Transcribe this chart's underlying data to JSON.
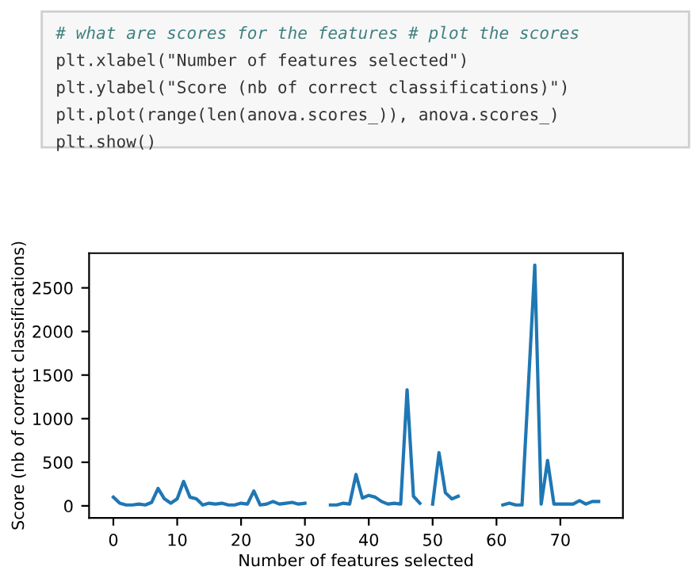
{
  "chart_data": {
    "type": "line",
    "xlabel": "Number of features selected",
    "ylabel": "Score (nb of correct classifications)",
    "annotations": [
      "# what are scores for the features # plot the scores",
      "plt.xlabel(\"Number of features selected\")",
      "plt.ylabel(\"Score (nb of correct classifications)\")",
      "plt.plot(range(len(anova.scores_)), anova.scores_)",
      "plt.show()"
    ],
    "x": [
      0,
      1,
      2,
      3,
      4,
      5,
      6,
      7,
      8,
      9,
      10,
      11,
      12,
      13,
      14,
      15,
      16,
      17,
      18,
      19,
      20,
      21,
      22,
      23,
      24,
      25,
      26,
      27,
      28,
      29,
      30,
      31,
      32,
      33,
      34,
      35,
      36,
      37,
      38,
      39,
      40,
      41,
      42,
      43,
      44,
      45,
      46,
      47,
      48,
      49,
      50,
      51,
      52,
      53,
      54,
      55,
      56,
      57,
      58,
      59,
      60,
      61,
      62,
      63,
      64,
      65,
      66,
      67,
      68,
      69,
      70,
      71,
      72,
      73,
      74,
      75,
      76
    ],
    "series": [
      {
        "color": "#1f77b4",
        "values": [
          100,
          30,
          10,
          10,
          20,
          10,
          40,
          200,
          80,
          30,
          80,
          280,
          100,
          80,
          10,
          30,
          20,
          30,
          10,
          10,
          30,
          20,
          170,
          10,
          20,
          50,
          20,
          30,
          40,
          20,
          30,
          null,
          null,
          null,
          10,
          10,
          30,
          20,
          360,
          90,
          120,
          100,
          50,
          20,
          30,
          20,
          1330,
          110,
          30,
          null,
          20,
          610,
          150,
          80,
          110,
          null,
          null,
          null,
          null,
          null,
          null,
          10,
          30,
          10,
          10,
          1380,
          2760,
          20,
          520,
          20,
          20,
          20,
          20,
          60,
          20,
          50,
          50
        ]
      }
    ],
    "xlim": [
      -3.8,
      79.8
    ],
    "ylim": [
      -138,
      2898
    ],
    "xticks": [
      0,
      10,
      20,
      30,
      40,
      50,
      60,
      70
    ],
    "yticks": [
      0,
      500,
      1000,
      1500,
      2000,
      2500
    ],
    "grid": false,
    "marker": "none",
    "line_style": "solid"
  }
}
